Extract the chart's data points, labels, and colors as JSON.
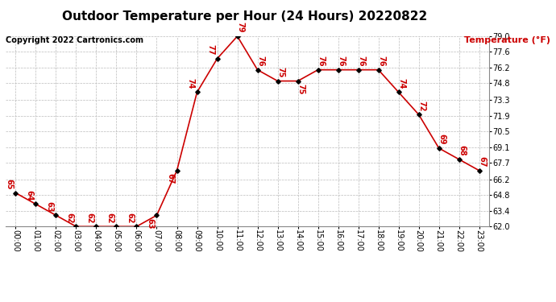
{
  "title": "Outdoor Temperature per Hour (24 Hours) 20220822",
  "copyright_text": "Copyright 2022 Cartronics.com",
  "legend_label": "Temperature (°F)",
  "hours": [
    0,
    1,
    2,
    3,
    4,
    5,
    6,
    7,
    8,
    9,
    10,
    11,
    12,
    13,
    14,
    15,
    16,
    17,
    18,
    19,
    20,
    21,
    22,
    23
  ],
  "temps": [
    65,
    64,
    63,
    62,
    62,
    62,
    62,
    63,
    67,
    74,
    77,
    79,
    76,
    75,
    75,
    76,
    76,
    76,
    76,
    74,
    72,
    69,
    68,
    67
  ],
  "xlabels": [
    "00:00",
    "01:00",
    "02:00",
    "03:00",
    "04:00",
    "05:00",
    "06:00",
    "07:00",
    "08:00",
    "09:00",
    "10:00",
    "11:00",
    "12:00",
    "13:00",
    "14:00",
    "15:00",
    "16:00",
    "17:00",
    "18:00",
    "19:00",
    "20:00",
    "21:00",
    "22:00",
    "23:00"
  ],
  "ylim": [
    62.0,
    79.0
  ],
  "yticks": [
    62.0,
    63.4,
    64.8,
    66.2,
    67.7,
    69.1,
    70.5,
    71.9,
    73.3,
    74.8,
    76.2,
    77.6,
    79.0
  ],
  "line_color": "#cc0000",
  "marker_color": "#000000",
  "bg_color": "#ffffff",
  "grid_color": "#bbbbbb",
  "title_fontsize": 11,
  "copyright_fontsize": 7,
  "legend_fontsize": 8,
  "label_fontsize": 7,
  "annotation_fontsize": 7,
  "annotations": [
    {
      "i": 0,
      "val": 65,
      "ox": -6,
      "oy": 3,
      "rot": 270
    },
    {
      "i": 1,
      "val": 64,
      "ox": -6,
      "oy": 3,
      "rot": 270
    },
    {
      "i": 2,
      "val": 63,
      "ox": -6,
      "oy": 3,
      "rot": 270
    },
    {
      "i": 3,
      "val": 62,
      "ox": -6,
      "oy": 3,
      "rot": 270
    },
    {
      "i": 4,
      "val": 62,
      "ox": -6,
      "oy": 3,
      "rot": 270
    },
    {
      "i": 5,
      "val": 62,
      "ox": -6,
      "oy": 3,
      "rot": 270
    },
    {
      "i": 6,
      "val": 62,
      "ox": -6,
      "oy": 3,
      "rot": 270
    },
    {
      "i": 7,
      "val": 63,
      "ox": -6,
      "oy": -12,
      "rot": 270
    },
    {
      "i": 8,
      "val": 67,
      "ox": -6,
      "oy": -12,
      "rot": 270
    },
    {
      "i": 9,
      "val": 74,
      "ox": -6,
      "oy": 3,
      "rot": 270
    },
    {
      "i": 10,
      "val": 77,
      "ox": -6,
      "oy": 3,
      "rot": 270
    },
    {
      "i": 11,
      "val": 79,
      "ox": 3,
      "oy": 3,
      "rot": 270
    },
    {
      "i": 12,
      "val": 76,
      "ox": 3,
      "oy": 3,
      "rot": 270
    },
    {
      "i": 13,
      "val": 75,
      "ox": 3,
      "oy": 3,
      "rot": 270
    },
    {
      "i": 14,
      "val": 75,
      "ox": 3,
      "oy": -12,
      "rot": 270
    },
    {
      "i": 15,
      "val": 76,
      "ox": 3,
      "oy": 3,
      "rot": 270
    },
    {
      "i": 16,
      "val": 76,
      "ox": 3,
      "oy": 3,
      "rot": 270
    },
    {
      "i": 17,
      "val": 76,
      "ox": 3,
      "oy": 3,
      "rot": 270
    },
    {
      "i": 18,
      "val": 76,
      "ox": 3,
      "oy": 3,
      "rot": 270
    },
    {
      "i": 19,
      "val": 74,
      "ox": 3,
      "oy": 3,
      "rot": 270
    },
    {
      "i": 20,
      "val": 72,
      "ox": 3,
      "oy": 3,
      "rot": 270
    },
    {
      "i": 21,
      "val": 69,
      "ox": 3,
      "oy": 3,
      "rot": 270
    },
    {
      "i": 22,
      "val": 68,
      "ox": 3,
      "oy": 3,
      "rot": 270
    },
    {
      "i": 23,
      "val": 67,
      "ox": 3,
      "oy": 3,
      "rot": 270
    }
  ]
}
